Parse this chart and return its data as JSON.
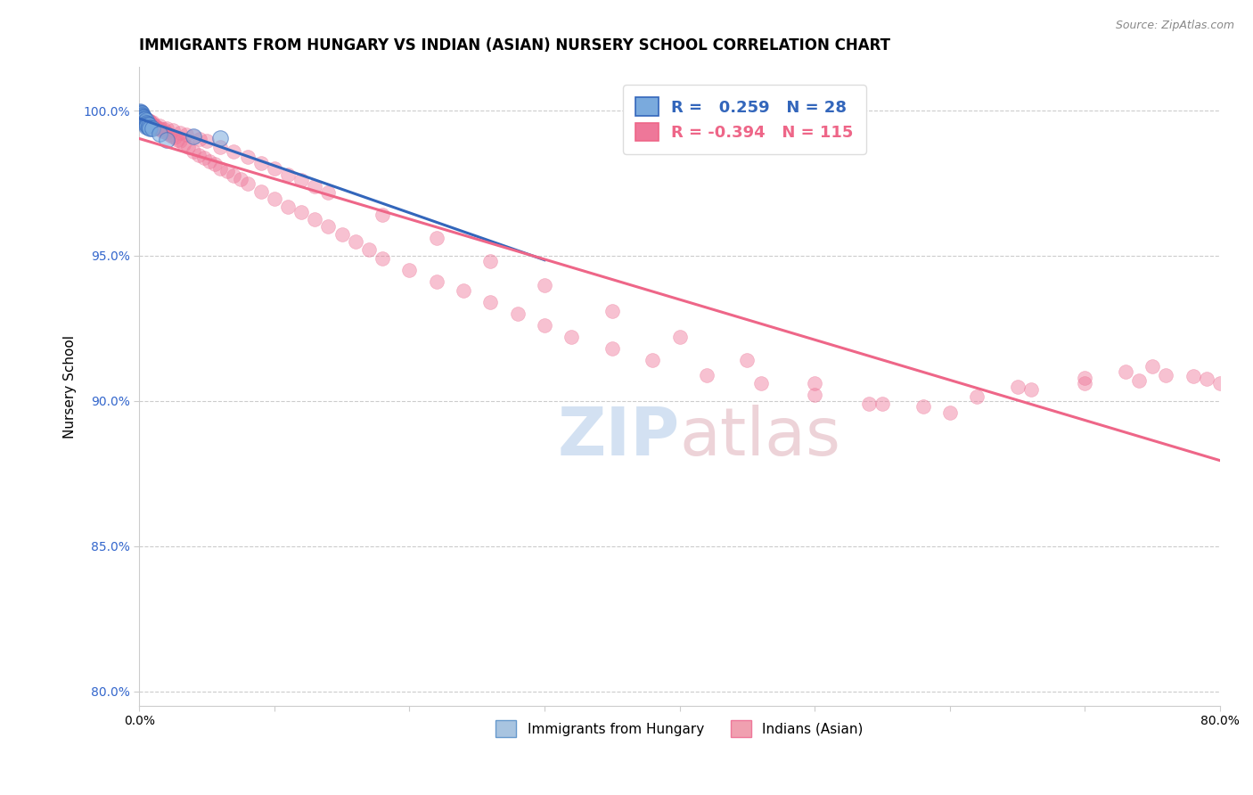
{
  "title": "IMMIGRANTS FROM HUNGARY VS INDIAN (ASIAN) NURSERY SCHOOL CORRELATION CHART",
  "source": "Source: ZipAtlas.com",
  "ylabel": "Nursery School",
  "xlim": [
    0.0,
    0.8
  ],
  "ylim": [
    0.795,
    1.015
  ],
  "yticks": [
    0.8,
    0.85,
    0.9,
    0.95,
    1.0
  ],
  "ytick_labels": [
    "80.0%",
    "85.0%",
    "90.0%",
    "95.0%",
    "100.0%"
  ],
  "xticks": [
    0.0,
    0.1,
    0.2,
    0.3,
    0.4,
    0.5,
    0.6,
    0.7,
    0.8
  ],
  "xtick_labels": [
    "0.0%",
    "",
    "",
    "",
    "",
    "",
    "",
    "",
    "80.0%"
  ],
  "legend_entries": [
    {
      "label": "Immigrants from Hungary",
      "color": "#a8c4e0"
    },
    {
      "label": "Indians (Asian)",
      "color": "#f0a0b0"
    }
  ],
  "R_hungary": 0.259,
  "N_hungary": 28,
  "R_indian": -0.394,
  "N_indian": 115,
  "hungary_color": "#7aaadd",
  "indian_color": "#ee7799",
  "hungary_line_color": "#3366bb",
  "indian_line_color": "#ee6688",
  "background_color": "#ffffff",
  "grid_color": "#cccccc",
  "hungary_scatter": {
    "x": [
      0.0005,
      0.001,
      0.001,
      0.001,
      0.0015,
      0.002,
      0.002,
      0.0025,
      0.003,
      0.003,
      0.003,
      0.004,
      0.004,
      0.004,
      0.005,
      0.005,
      0.005,
      0.005,
      0.006,
      0.006,
      0.007,
      0.007,
      0.008,
      0.01,
      0.015,
      0.02,
      0.04,
      0.06
    ],
    "y": [
      0.9998,
      0.9995,
      0.9992,
      0.9988,
      0.999,
      0.9985,
      0.9982,
      0.998,
      0.9978,
      0.9975,
      0.997,
      0.9972,
      0.9968,
      0.996,
      0.9965,
      0.9958,
      0.9952,
      0.9945,
      0.9955,
      0.9948,
      0.995,
      0.9942,
      0.994,
      0.9938,
      0.992,
      0.99,
      0.991,
      0.9905
    ]
  },
  "indian_scatter": {
    "x": [
      0.001,
      0.001,
      0.002,
      0.002,
      0.003,
      0.003,
      0.004,
      0.004,
      0.005,
      0.005,
      0.006,
      0.006,
      0.007,
      0.007,
      0.008,
      0.008,
      0.009,
      0.009,
      0.01,
      0.01,
      0.011,
      0.012,
      0.013,
      0.014,
      0.015,
      0.016,
      0.017,
      0.018,
      0.019,
      0.02,
      0.022,
      0.024,
      0.026,
      0.028,
      0.03,
      0.033,
      0.036,
      0.04,
      0.044,
      0.048,
      0.052,
      0.056,
      0.06,
      0.065,
      0.07,
      0.075,
      0.08,
      0.09,
      0.1,
      0.11,
      0.12,
      0.13,
      0.14,
      0.15,
      0.16,
      0.17,
      0.18,
      0.2,
      0.22,
      0.24,
      0.26,
      0.28,
      0.3,
      0.32,
      0.35,
      0.38,
      0.42,
      0.46,
      0.5,
      0.54,
      0.58,
      0.62,
      0.66,
      0.7,
      0.74,
      0.78,
      0.01,
      0.015,
      0.02,
      0.025,
      0.03,
      0.035,
      0.04,
      0.045,
      0.05,
      0.06,
      0.07,
      0.08,
      0.09,
      0.1,
      0.11,
      0.12,
      0.13,
      0.14,
      0.18,
      0.22,
      0.26,
      0.3,
      0.35,
      0.4,
      0.45,
      0.5,
      0.55,
      0.6,
      0.65,
      0.7,
      0.75,
      0.73,
      0.76,
      0.79,
      0.8
    ],
    "y": [
      0.9988,
      0.9975,
      0.9982,
      0.997,
      0.9978,
      0.9965,
      0.9972,
      0.996,
      0.997,
      0.9958,
      0.9968,
      0.9955,
      0.9965,
      0.9952,
      0.9962,
      0.9948,
      0.9958,
      0.9945,
      0.996,
      0.995,
      0.9945,
      0.9948,
      0.9942,
      0.9938,
      0.994,
      0.9935,
      0.993,
      0.9935,
      0.9928,
      0.9925,
      0.9918,
      0.9912,
      0.9908,
      0.99,
      0.9895,
      0.9885,
      0.9875,
      0.986,
      0.9848,
      0.9838,
      0.9825,
      0.9815,
      0.98,
      0.979,
      0.9775,
      0.9765,
      0.975,
      0.972,
      0.9695,
      0.967,
      0.965,
      0.9625,
      0.96,
      0.9575,
      0.9548,
      0.952,
      0.949,
      0.945,
      0.941,
      0.938,
      0.934,
      0.93,
      0.926,
      0.922,
      0.918,
      0.914,
      0.909,
      0.906,
      0.902,
      0.899,
      0.898,
      0.9015,
      0.904,
      0.906,
      0.907,
      0.9085,
      0.9955,
      0.9948,
      0.994,
      0.9932,
      0.9925,
      0.9918,
      0.991,
      0.9902,
      0.9895,
      0.9875,
      0.9858,
      0.984,
      0.982,
      0.98,
      0.9778,
      0.976,
      0.974,
      0.9718,
      0.964,
      0.956,
      0.948,
      0.94,
      0.931,
      0.922,
      0.914,
      0.906,
      0.899,
      0.896,
      0.905,
      0.908,
      0.912,
      0.91,
      0.909,
      0.9075,
      0.906
    ]
  }
}
